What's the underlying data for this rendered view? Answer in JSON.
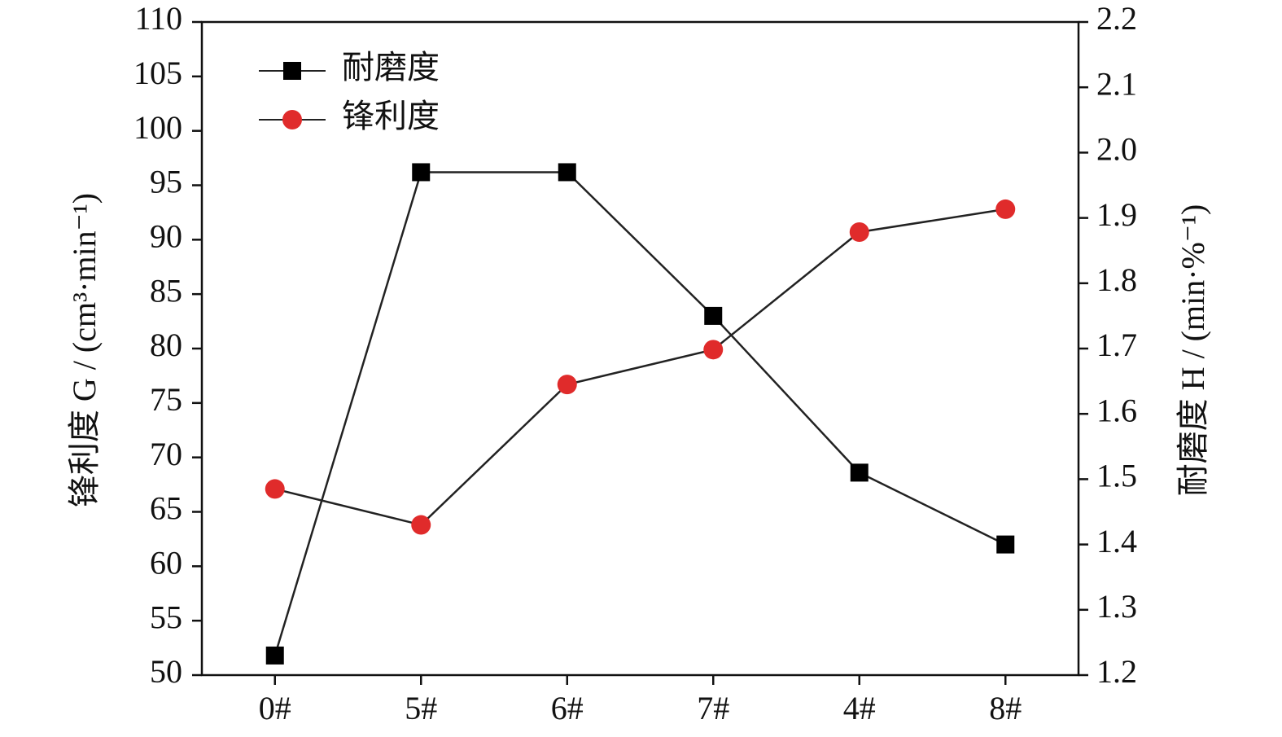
{
  "chart_data": {
    "type": "line",
    "categories": [
      "0#",
      "5#",
      "6#",
      "7#",
      "4#",
      "8#"
    ],
    "series": [
      {
        "name": "耐磨度",
        "color": "#000000",
        "marker": "square",
        "axis": "y2",
        "values": [
          1.23,
          1.97,
          1.97,
          1.75,
          1.51,
          1.4
        ]
      },
      {
        "name": "锋利度",
        "color": "#e02b2b",
        "marker": "circle",
        "values": [
          67.1,
          63.8,
          76.7,
          79.9,
          90.7,
          92.8
        ]
      }
    ],
    "ylabel": "锋利度 G / (cm³·min⁻¹)",
    "y2label": "耐磨度 H / (min·%⁻¹)",
    "ylim": [
      50,
      110
    ],
    "yticks": [
      50,
      55,
      60,
      65,
      70,
      75,
      80,
      85,
      90,
      95,
      100,
      105,
      110
    ],
    "y2lim": [
      1.2,
      2.2
    ],
    "y2ticks": [
      1.2,
      1.3,
      1.4,
      1.5,
      1.6,
      1.7,
      1.8,
      1.9,
      {
        "value": 2,
        "label": "2.0"
      },
      2.1,
      2.2
    ],
    "legend": "upper left"
  }
}
